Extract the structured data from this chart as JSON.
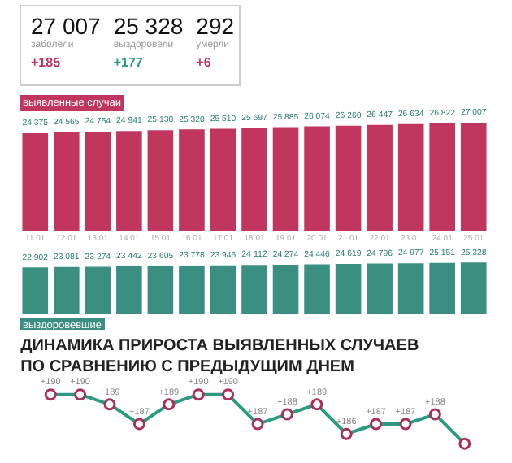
{
  "chart_data": [
    {
      "type": "other",
      "annotations": [
        "27 007",
        "заболели",
        "+185",
        "25 328",
        "выздоровели",
        "+177",
        "292",
        "умерли",
        "+6"
      ]
    },
    {
      "type": "bar",
      "title": "выявленные случаи",
      "categories": [
        "11.01",
        "12.01",
        "13.01",
        "14.01",
        "15.01",
        "16.01",
        "17.01",
        "18.01",
        "19.01",
        "20.01",
        "21.01",
        "22.01",
        "23.01",
        "24.01",
        "25.01"
      ],
      "values": [
        24375,
        24565,
        24754,
        24941,
        25130,
        25320,
        25510,
        25697,
        25885,
        26074,
        26260,
        26447,
        26634,
        26822,
        27007
      ],
      "value_labels": [
        "24 375",
        "24 565",
        "24 754",
        "24 941",
        "25 130",
        "25 320",
        "25 510",
        "25 697",
        "25 885",
        "26 074",
        "26 260",
        "26 447",
        "26 634",
        "26 822",
        "27 007"
      ],
      "color": "#c0365e",
      "tick_labels": "x"
    },
    {
      "type": "bar",
      "title": "выздоровевшие",
      "categories": [
        "11.01",
        "12.01",
        "13.01",
        "14.01",
        "15.01",
        "16.01",
        "17.01",
        "18.01",
        "19.01",
        "20.01",
        "21.01",
        "22.01",
        "23.01",
        "24.01",
        "25.01"
      ],
      "values": [
        22902,
        23081,
        23274,
        23442,
        23605,
        23778,
        23945,
        24112,
        24274,
        24446,
        24619,
        24796,
        24977,
        25151,
        25328
      ],
      "value_labels": [
        "22 902",
        "23 081",
        "23 274",
        "23 442",
        "23 605",
        "23 778",
        "23 945",
        "24 112",
        "24 274",
        "24 446",
        "24 619",
        "24 796",
        "24 977",
        "25 151",
        "25 328"
      ],
      "color": "#3a8f80",
      "tick_labels": false
    },
    {
      "type": "line",
      "title": "ДИНАМИКА ПРИРОСТА ВЫЯВЛЕННЫХ СЛУЧАЕВ\nПО СРАВНЕНИЮ С ПРЕДЫДУЩИМ ДНЕМ",
      "categories": [
        null,
        null,
        null,
        null,
        null,
        null,
        null,
        null,
        null,
        null,
        null,
        null,
        null,
        null,
        null
      ],
      "values": [
        190,
        190,
        189,
        187,
        189,
        190,
        190,
        187,
        188,
        189,
        186,
        187,
        187,
        188,
        185
      ],
      "value_labels": [
        "+190",
        "+190",
        "+189",
        "+187",
        "+189",
        "+190",
        "+190",
        "+187",
        "+188",
        "+189",
        "+186",
        "+187",
        "+187",
        "+188",
        null
      ],
      "color": "#2a9a80",
      "marker": "circle",
      "line_style": "solid",
      "tick_labels": false
    }
  ]
}
